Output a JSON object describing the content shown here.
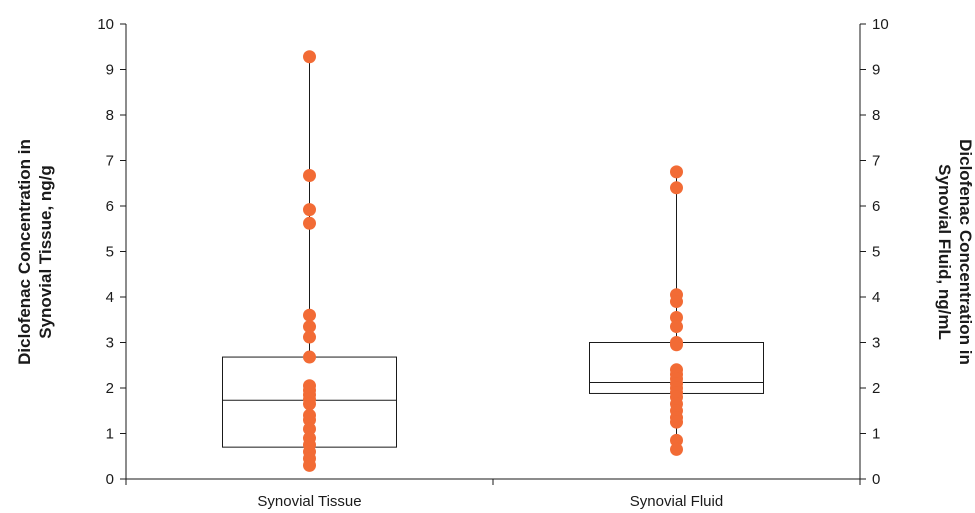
{
  "chart_data": {
    "type": "box",
    "title": "",
    "categories": [
      "Synovial Tissue",
      "Synovial Fluid"
    ],
    "ylim": [
      0,
      10
    ],
    "yticks": [
      0,
      1,
      2,
      3,
      4,
      5,
      6,
      7,
      8,
      9,
      10
    ],
    "y2lim": [
      0,
      10
    ],
    "ylabel_lines": [
      "Diclofenac Concentration in",
      "Synovial Tissue, ng/g"
    ],
    "y2label_lines": [
      "Diclofenac Concentration in",
      "Synovial Fluid, ng/mL"
    ],
    "point_color": "#f26b35",
    "boxes": [
      {
        "category": "Synovial Tissue",
        "q1": 0.7,
        "median": 1.73,
        "q3": 2.68,
        "whisker_low": 0.3,
        "whisker_high": 9.28
      },
      {
        "category": "Synovial Fluid",
        "q1": 1.88,
        "median": 2.12,
        "q3": 3.0,
        "whisker_low": 0.65,
        "whisker_high": 6.75
      }
    ],
    "points": [
      {
        "category": "Synovial Tissue",
        "values": [
          9.28,
          6.67,
          5.92,
          5.62,
          3.6,
          3.35,
          3.12,
          2.68,
          2.05,
          1.95,
          1.85,
          1.75,
          1.65,
          1.4,
          1.3,
          1.1,
          0.9,
          0.75,
          0.6,
          0.45,
          0.3
        ]
      },
      {
        "category": "Synovial Fluid",
        "values": [
          6.75,
          6.4,
          4.05,
          3.9,
          3.55,
          3.35,
          3.0,
          2.95,
          2.4,
          2.3,
          2.2,
          2.1,
          2.0,
          1.9,
          1.8,
          1.65,
          1.5,
          1.35,
          1.25,
          0.85,
          0.65
        ]
      }
    ],
    "grid": false,
    "legend": "none"
  }
}
